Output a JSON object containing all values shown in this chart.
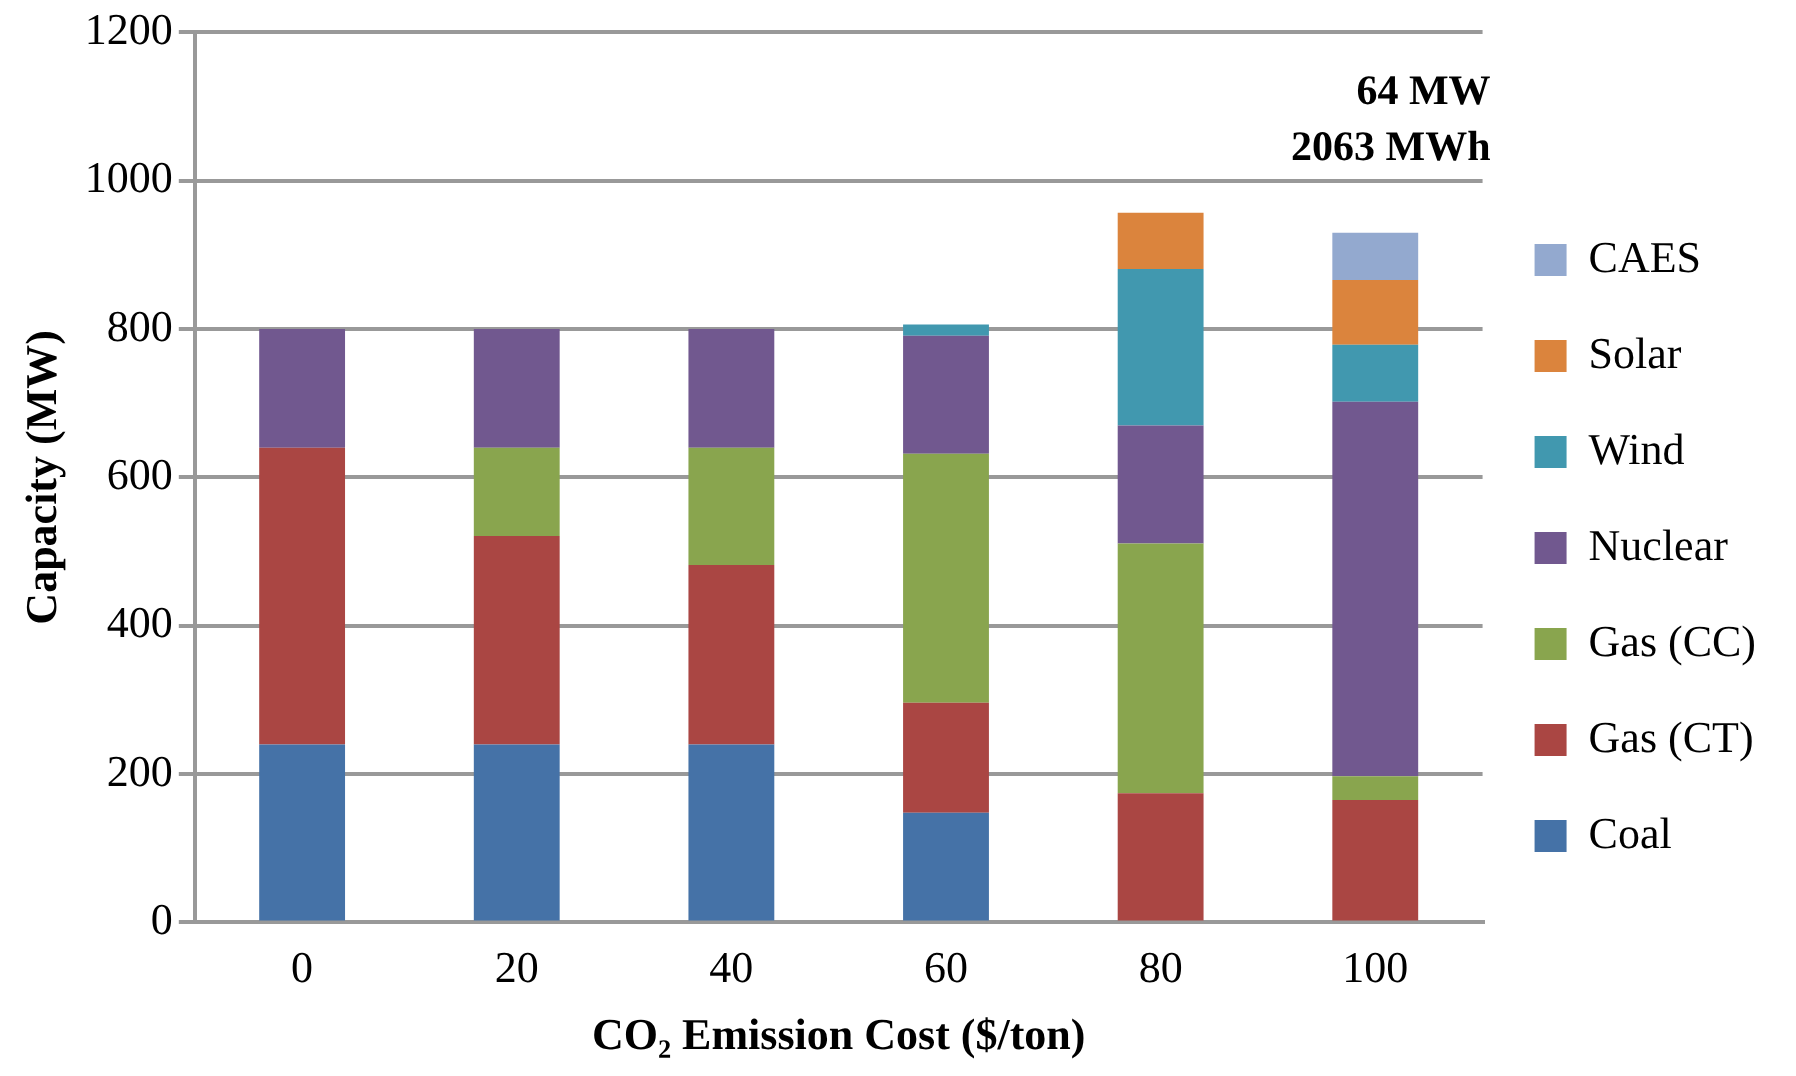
{
  "chart_data": {
    "type": "bar",
    "stacked": true,
    "xlabel": "CO₂ Emission Cost ($/ton)",
    "ylabel": "Capacity (MW)",
    "categories": [
      "0",
      "20",
      "40",
      "60",
      "80",
      "100"
    ],
    "series": [
      {
        "name": "Coal",
        "color": "#4572a7",
        "values": [
          240,
          240,
          240,
          148,
          0,
          0
        ]
      },
      {
        "name": "Gas (CT)",
        "color": "#aa4643",
        "values": [
          400,
          281,
          242,
          148,
          174,
          165
        ]
      },
      {
        "name": "Gas (CC)",
        "color": "#89a54e",
        "values": [
          0,
          119,
          158,
          336,
          337,
          32
        ]
      },
      {
        "name": "Nuclear",
        "color": "#71588f",
        "values": [
          160,
          160,
          160,
          159,
          159,
          505
        ]
      },
      {
        "name": "Wind",
        "color": "#4198af",
        "values": [
          0,
          0,
          0,
          15,
          211,
          77
        ]
      },
      {
        "name": "Solar",
        "color": "#db843d",
        "values": [
          0,
          0,
          0,
          0,
          76,
          87
        ]
      },
      {
        "name": "CAES",
        "color": "#93a9cf",
        "values": [
          0,
          0,
          0,
          0,
          0,
          64
        ]
      }
    ],
    "ylim": [
      0,
      1200
    ],
    "yticks": [
      0,
      200,
      400,
      600,
      800,
      1000,
      1200
    ],
    "grid": "y",
    "legend": "right",
    "annotations": [
      "64 MW\n2063 MWh"
    ]
  }
}
